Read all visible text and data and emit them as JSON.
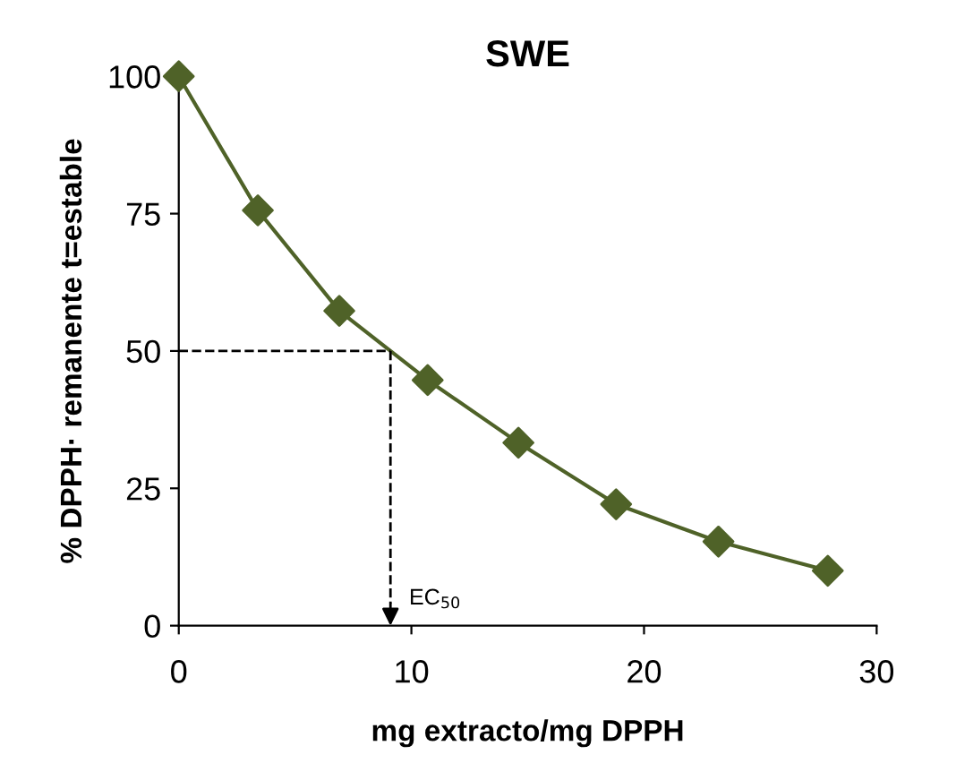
{
  "chart_data": {
    "type": "scatter",
    "title": "SWE",
    "xlabel": "mg extracto/mg DPPH",
    "ylabel": "% DPPH· remanente t=estable",
    "xlim": [
      0,
      30
    ],
    "ylim": [
      0,
      100
    ],
    "xticks": [
      0,
      10,
      20,
      30
    ],
    "yticks": [
      0,
      25,
      50,
      75,
      100
    ],
    "grid": false,
    "legend": false,
    "marker": "diamond",
    "series": [
      {
        "color": "#4f6228",
        "x": [
          0,
          3.4,
          6.9,
          10.7,
          14.6,
          18.8,
          23.2,
          27.9
        ],
        "values": [
          100,
          75.6,
          57.3,
          44.7,
          33.3,
          22.1,
          15.3,
          10.0
        ]
      },
      {
        "type": "line",
        "color": "#4f6228",
        "marker": "none",
        "line_style": "solid",
        "x": [
          0,
          3.4,
          6.9,
          9.1,
          10.7,
          14.6,
          18.8,
          23.2,
          27.9
        ],
        "values": [
          100,
          75.6,
          57.3,
          50,
          44.7,
          33.3,
          22.1,
          15.3,
          10.0
        ]
      }
    ],
    "ref_lines": [
      {
        "axis": "y",
        "value": 50,
        "color": "#000000",
        "line_style": "dashed"
      },
      {
        "axis": "x",
        "value": 9.1,
        "label": "EC$_{50}$",
        "color": "#000000",
        "line_style": "dashed"
      }
    ]
  }
}
